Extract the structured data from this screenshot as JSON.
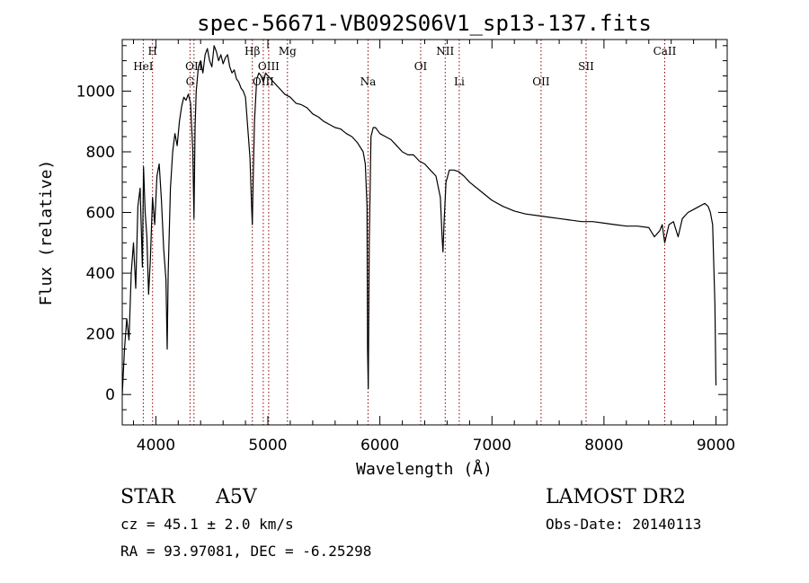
{
  "chart_data": {
    "type": "line",
    "title": "spec-56671-VB092S06V1_sp13-137.fits",
    "xlabel": "Wavelength (Å)",
    "ylabel": "Flux (relative)",
    "xlim": [
      3700,
      9100
    ],
    "ylim": [
      -100,
      1170
    ],
    "xticks": [
      4000,
      5000,
      6000,
      7000,
      8000,
      9000
    ],
    "yticks": [
      0,
      200,
      400,
      600,
      800,
      1000
    ],
    "grid": false,
    "line_color": "#000000",
    "marker_color": "#8b0000",
    "series": [
      {
        "x": [
          3700,
          3720,
          3740,
          3760,
          3780,
          3800,
          3820,
          3840,
          3860,
          3880,
          3890,
          3905,
          3920,
          3935,
          3950,
          3970,
          3990,
          4010,
          4030,
          4050,
          4070,
          4090,
          4101,
          4110,
          4130,
          4150,
          4170,
          4190,
          4210,
          4230,
          4250,
          4270,
          4290,
          4310,
          4330,
          4340,
          4350,
          4360,
          4380,
          4400,
          4420,
          4440,
          4460,
          4480,
          4500,
          4520,
          4540,
          4560,
          4580,
          4600,
          4620,
          4640,
          4660,
          4680,
          4700,
          4720,
          4740,
          4760,
          4780,
          4800,
          4820,
          4840,
          4855,
          4861,
          4868,
          4880,
          4900,
          4920,
          4940,
          4960,
          4980,
          5000,
          5050,
          5100,
          5150,
          5200,
          5250,
          5300,
          5350,
          5400,
          5450,
          5500,
          5550,
          5600,
          5650,
          5700,
          5750,
          5800,
          5850,
          5870,
          5885,
          5890,
          5896,
          5905,
          5920,
          5940,
          5960,
          5980,
          6000,
          6050,
          6100,
          6150,
          6200,
          6250,
          6300,
          6350,
          6400,
          6450,
          6500,
          6540,
          6555,
          6563,
          6572,
          6590,
          6620,
          6660,
          6700,
          6750,
          6800,
          6900,
          7000,
          7100,
          7200,
          7300,
          7400,
          7500,
          7600,
          7700,
          7800,
          7900,
          8000,
          8100,
          8200,
          8300,
          8400,
          8450,
          8498,
          8520,
          8542,
          8580,
          8620,
          8662,
          8700,
          8750,
          8800,
          8850,
          8900,
          8930,
          8950,
          8970,
          8990,
          9000
        ],
        "y": [
          0,
          150,
          250,
          180,
          400,
          500,
          350,
          620,
          680,
          420,
          750,
          600,
          520,
          330,
          440,
          650,
          560,
          720,
          760,
          640,
          480,
          380,
          150,
          400,
          680,
          800,
          860,
          820,
          900,
          950,
          980,
          970,
          990,
          960,
          800,
          580,
          880,
          1000,
          1080,
          1100,
          1060,
          1120,
          1140,
          1100,
          1080,
          1150,
          1130,
          1100,
          1120,
          1090,
          1110,
          1120,
          1080,
          1060,
          1070,
          1040,
          1030,
          1010,
          1000,
          980,
          880,
          780,
          620,
          560,
          700,
          900,
          1040,
          1060,
          1050,
          1030,
          1060,
          1050,
          1030,
          1010,
          990,
          980,
          960,
          955,
          945,
          925,
          915,
          900,
          890,
          880,
          875,
          860,
          850,
          830,
          800,
          760,
          620,
          150,
          20,
          500,
          850,
          880,
          880,
          870,
          860,
          850,
          840,
          820,
          800,
          790,
          790,
          770,
          760,
          740,
          720,
          650,
          520,
          470,
          560,
          700,
          740,
          740,
          735,
          720,
          700,
          670,
          640,
          620,
          605,
          595,
          590,
          585,
          580,
          575,
          570,
          570,
          565,
          560,
          555,
          555,
          550,
          520,
          540,
          560,
          500,
          560,
          570,
          520,
          580,
          600,
          610,
          620,
          630,
          620,
          600,
          560,
          300,
          30
        ]
      }
    ],
    "line_markers": [
      {
        "label": "HeI",
        "wavelength": 3888,
        "row": 2
      },
      {
        "label": "H",
        "wavelength": 3970,
        "row": 1
      },
      {
        "label": "G",
        "wavelength": 4305,
        "row": 3
      },
      {
        "label": "OII",
        "wavelength": 4340,
        "row": 2
      },
      {
        "label": "Hβ",
        "wavelength": 4861,
        "row": 1
      },
      {
        "label": "OIII",
        "wavelength": 4959,
        "row": 3
      },
      {
        "label": "OIII",
        "wavelength": 5007,
        "row": 2
      },
      {
        "label": "Mg",
        "wavelength": 5175,
        "row": 1
      },
      {
        "label": "Na",
        "wavelength": 5894,
        "row": 3
      },
      {
        "label": "OI",
        "wavelength": 6364,
        "row": 2
      },
      {
        "label": "NII",
        "wavelength": 6583,
        "row": 1
      },
      {
        "label": "Li",
        "wavelength": 6708,
        "row": 3
      },
      {
        "label": "OII",
        "wavelength": 7438,
        "row": 3
      },
      {
        "label": "SII",
        "wavelength": 7840,
        "row": 2
      },
      {
        "label": "CaII",
        "wavelength": 8542,
        "row": 1
      }
    ]
  },
  "footer": {
    "object_class": "STAR",
    "subclass": "A5V",
    "survey": "LAMOST DR2",
    "cz_line": "cz = 45.1 ± 2.0 km/s",
    "obs_date_line": "Obs-Date: 20140113",
    "coords_line": "RA =  93.97081, DEC =  -6.25298"
  }
}
